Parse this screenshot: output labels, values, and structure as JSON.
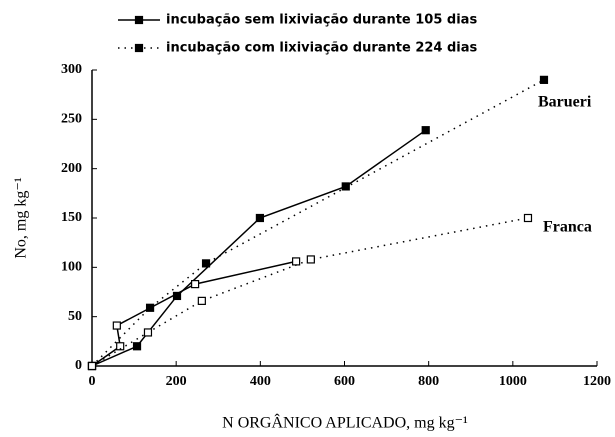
{
  "chart_data": {
    "type": "line",
    "xlabel": "N ORGÂNICO APLICADO, mg kg⁻¹",
    "ylabel": "No, mg kg⁻¹",
    "legend": [
      {
        "name": "incubação sem lixiviação durante 105 dias",
        "style": "solid"
      },
      {
        "name": "incubação com lixiviação durante 224 dias",
        "style": "dotted"
      }
    ],
    "groups": [
      {
        "label": "Barueri",
        "marker": "filled",
        "series": [
          {
            "x": [
              0,
              107,
              202,
              399,
              603,
              793
            ],
            "values": [
              0,
              20,
              71,
              150,
              182,
              239
            ]
          },
          {
            "x": [
              0,
              138,
              271,
              1074
            ],
            "values": [
              0,
              59,
              104,
              290
            ]
          }
        ]
      },
      {
        "label": "Franca",
        "marker": "open",
        "series": [
          {
            "x": [
              0,
              67,
              59,
              245,
              485
            ],
            "values": [
              0,
              20,
              41,
              83,
              106
            ]
          },
          {
            "x": [
              0,
              133,
              261,
              520,
              1036
            ],
            "values": [
              0,
              34,
              66,
              108,
              150
            ]
          }
        ]
      }
    ],
    "xlim": [
      0,
      1200
    ],
    "xticks": [
      0,
      200,
      400,
      600,
      800,
      1000,
      1200
    ],
    "ylim": [
      0,
      300
    ],
    "yticks": [
      0,
      50,
      100,
      150,
      200,
      250,
      300
    ]
  }
}
